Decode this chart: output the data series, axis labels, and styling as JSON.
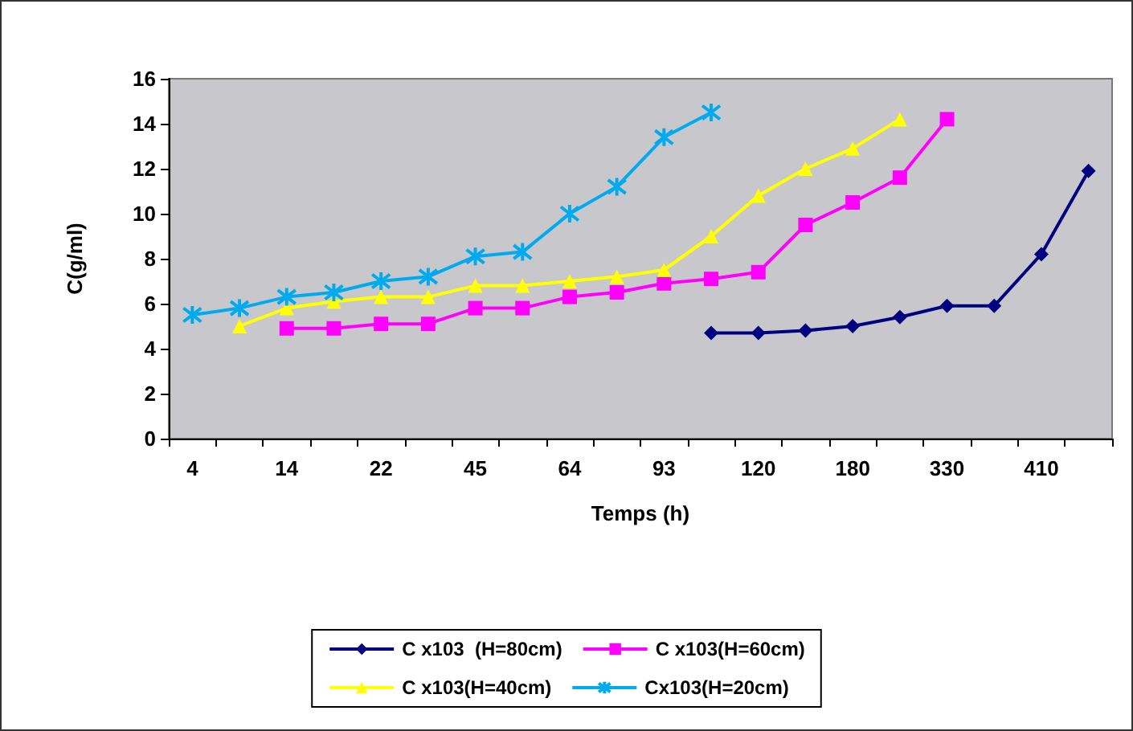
{
  "chart_data": {
    "type": "line",
    "xlabel": "Temps (h)",
    "ylabel": "C(g/ml)",
    "categories": [
      "4",
      null,
      "14",
      null,
      "22",
      null,
      "45",
      null,
      "64",
      null,
      "93",
      null,
      "120",
      null,
      "180",
      null,
      "330",
      null,
      "410",
      null
    ],
    "ylim": [
      0,
      16
    ],
    "yticks": [
      0,
      2,
      4,
      6,
      8,
      10,
      12,
      14,
      16
    ],
    "grid": false,
    "legend": "bottom",
    "series": [
      {
        "name": "C x103  (H=80cm)",
        "color": "#000080",
        "marker": "diamond",
        "values": [
          null,
          null,
          null,
          null,
          null,
          null,
          null,
          null,
          null,
          null,
          null,
          4.7,
          4.7,
          4.8,
          5.0,
          5.4,
          5.9,
          5.9,
          8.2,
          11.9
        ]
      },
      {
        "name": "C x103(H=60cm)",
        "color": "#ff00ff",
        "marker": "square",
        "values": [
          null,
          null,
          4.9,
          4.9,
          5.1,
          5.1,
          5.8,
          5.8,
          6.3,
          6.5,
          6.9,
          7.1,
          7.4,
          9.5,
          10.5,
          11.6,
          14.2,
          null,
          null,
          null
        ]
      },
      {
        "name": "C x103(H=40cm)",
        "color": "#ffff00",
        "marker": "triangle",
        "values": [
          null,
          5.0,
          5.8,
          6.1,
          6.3,
          6.3,
          6.8,
          6.8,
          7.0,
          7.2,
          7.5,
          9.0,
          10.8,
          12.0,
          12.9,
          14.2,
          null,
          null,
          null,
          null
        ]
      },
      {
        "name": "Cx103(H=20cm)",
        "color": "#00aaee",
        "marker": "cross",
        "values": [
          5.5,
          5.8,
          6.3,
          6.5,
          7.0,
          7.2,
          8.1,
          8.3,
          10.0,
          11.2,
          13.4,
          14.5,
          null,
          null,
          null,
          null,
          null,
          null,
          null,
          null
        ]
      }
    ]
  }
}
